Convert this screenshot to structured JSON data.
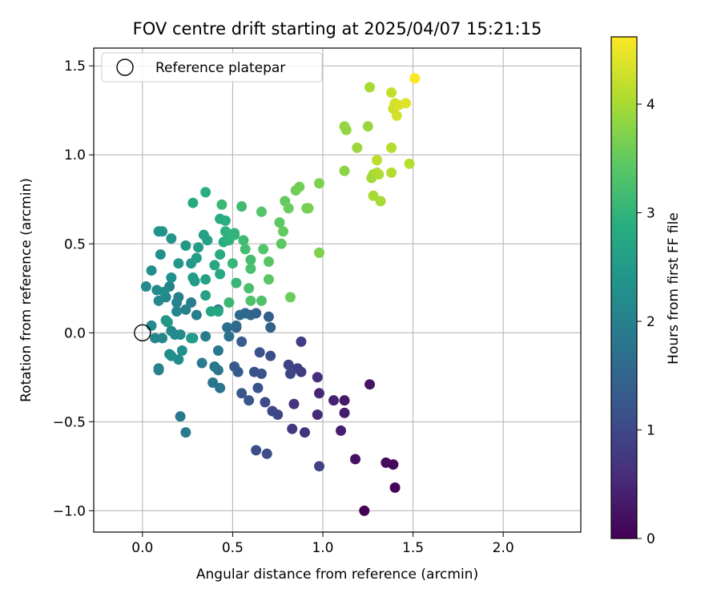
{
  "chart_data": {
    "type": "scatter",
    "title": "FOV centre drift starting at 2025/04/07 15:21:15",
    "xlabel": "Angular distance from reference (arcmin)",
    "ylabel": "Rotation from reference (arcmin)",
    "xlim": [
      -0.27,
      2.43
    ],
    "ylim": [
      -1.12,
      1.6
    ],
    "xticks": [
      0.0,
      0.5,
      1.0,
      1.5,
      2.0
    ],
    "xtick_labels": [
      "0.0",
      "0.5",
      "1.0",
      "1.5",
      "2.0"
    ],
    "yticks": [
      -1.0,
      -0.5,
      0.0,
      0.5,
      1.0,
      1.5
    ],
    "ytick_labels": [
      "−1.0",
      "−0.5",
      "0.0",
      "0.5",
      "1.0",
      "1.5"
    ],
    "grid": true,
    "legend": {
      "placement": "upper-left",
      "entries": [
        "Reference platepar"
      ]
    },
    "reference_point": {
      "x": 0.0,
      "y": 0.0
    },
    "colorbar": {
      "label": "Hours from first FF file",
      "range": [
        0,
        4.62
      ],
      "ticks": [
        0,
        1,
        2,
        3,
        4
      ],
      "tick_labels": [
        "0",
        "1",
        "2",
        "3",
        "4"
      ],
      "colormap": "viridis"
    },
    "points": [
      {
        "x": 1.23,
        "y": -1.0,
        "t": 0.0
      },
      {
        "x": 1.4,
        "y": -0.87,
        "t": 0.05
      },
      {
        "x": 1.39,
        "y": -0.74,
        "t": 0.1
      },
      {
        "x": 1.35,
        "y": -0.73,
        "t": 0.15
      },
      {
        "x": 1.18,
        "y": -0.71,
        "t": 0.2
      },
      {
        "x": 1.26,
        "y": -0.29,
        "t": 0.25
      },
      {
        "x": 1.12,
        "y": -0.38,
        "t": 0.3
      },
      {
        "x": 1.12,
        "y": -0.45,
        "t": 0.35
      },
      {
        "x": 1.1,
        "y": -0.55,
        "t": 0.4
      },
      {
        "x": 1.06,
        "y": -0.38,
        "t": 0.45
      },
      {
        "x": 0.98,
        "y": -0.34,
        "t": 0.5
      },
      {
        "x": 0.97,
        "y": -0.46,
        "t": 0.55
      },
      {
        "x": 0.97,
        "y": -0.25,
        "t": 0.6
      },
      {
        "x": 0.9,
        "y": -0.56,
        "t": 0.65
      },
      {
        "x": 0.84,
        "y": -0.4,
        "t": 0.7
      },
      {
        "x": 0.83,
        "y": -0.54,
        "t": 0.75
      },
      {
        "x": 0.88,
        "y": -0.22,
        "t": 0.8
      },
      {
        "x": 0.86,
        "y": -0.2,
        "t": 0.85
      },
      {
        "x": 0.81,
        "y": -0.18,
        "t": 0.9
      },
      {
        "x": 0.82,
        "y": -0.23,
        "t": 0.95
      },
      {
        "x": 0.75,
        "y": -0.46,
        "t": 1.0
      },
      {
        "x": 0.72,
        "y": -0.44,
        "t": 1.0
      },
      {
        "x": 0.68,
        "y": -0.39,
        "t": 1.05
      },
      {
        "x": 0.69,
        "y": -0.68,
        "t": 1.05
      },
      {
        "x": 0.63,
        "y": -0.66,
        "t": 1.1
      },
      {
        "x": 0.71,
        "y": -0.13,
        "t": 1.1
      },
      {
        "x": 0.65,
        "y": -0.11,
        "t": 1.15
      },
      {
        "x": 0.66,
        "y": -0.23,
        "t": 1.15
      },
      {
        "x": 0.62,
        "y": -0.22,
        "t": 1.2
      },
      {
        "x": 0.64,
        "y": -0.31,
        "t": 1.2
      },
      {
        "x": 0.59,
        "y": -0.38,
        "t": 1.25
      },
      {
        "x": 0.55,
        "y": -0.34,
        "t": 1.25
      },
      {
        "x": 0.51,
        "y": -0.19,
        "t": 1.3
      },
      {
        "x": 0.53,
        "y": -0.22,
        "t": 1.3
      },
      {
        "x": 0.55,
        "y": -0.05,
        "t": 1.35
      },
      {
        "x": 0.52,
        "y": 0.03,
        "t": 1.35
      },
      {
        "x": 0.88,
        "y": -0.05,
        "t": 0.85
      },
      {
        "x": 0.98,
        "y": -0.75,
        "t": 0.9
      },
      {
        "x": 0.7,
        "y": 0.09,
        "t": 1.4
      },
      {
        "x": 0.71,
        "y": 0.03,
        "t": 1.45
      },
      {
        "x": 0.63,
        "y": 0.11,
        "t": 1.45
      },
      {
        "x": 0.6,
        "y": 0.1,
        "t": 1.5
      },
      {
        "x": 0.57,
        "y": 0.11,
        "t": 1.55
      },
      {
        "x": 0.54,
        "y": 0.1,
        "t": 1.6
      },
      {
        "x": 0.52,
        "y": 0.04,
        "t": 1.6
      },
      {
        "x": 0.47,
        "y": 0.03,
        "t": 1.65
      },
      {
        "x": 0.48,
        "y": -0.02,
        "t": 1.7
      },
      {
        "x": 0.42,
        "y": 0.13,
        "t": 1.75
      },
      {
        "x": 0.43,
        "y": -0.31,
        "t": 1.75
      },
      {
        "x": 0.42,
        "y": -0.21,
        "t": 1.8
      },
      {
        "x": 0.39,
        "y": -0.28,
        "t": 1.8
      },
      {
        "x": 0.4,
        "y": -0.19,
        "t": 1.85
      },
      {
        "x": 0.42,
        "y": -0.1,
        "t": 1.85
      },
      {
        "x": 0.33,
        "y": -0.17,
        "t": 1.9
      },
      {
        "x": 0.35,
        "y": -0.02,
        "t": 1.9
      },
      {
        "x": 0.3,
        "y": 0.1,
        "t": 1.95
      },
      {
        "x": 0.27,
        "y": 0.17,
        "t": 1.95
      },
      {
        "x": 0.24,
        "y": 0.13,
        "t": 2.0
      },
      {
        "x": 0.21,
        "y": -0.47,
        "t": 1.85
      },
      {
        "x": 0.24,
        "y": -0.56,
        "t": 1.9
      },
      {
        "x": 0.2,
        "y": 0.2,
        "t": 2.0
      },
      {
        "x": 0.19,
        "y": 0.17,
        "t": 2.05
      },
      {
        "x": 0.15,
        "y": 0.26,
        "t": 2.05
      },
      {
        "x": 0.13,
        "y": 0.2,
        "t": 2.1
      },
      {
        "x": 0.19,
        "y": 0.12,
        "t": 2.1
      },
      {
        "x": 0.16,
        "y": 0.01,
        "t": 2.15
      },
      {
        "x": 0.18,
        "y": -0.01,
        "t": 2.15
      },
      {
        "x": 0.21,
        "y": -0.01,
        "t": 2.2
      },
      {
        "x": 0.16,
        "y": -0.13,
        "t": 2.2
      },
      {
        "x": 0.15,
        "y": -0.12,
        "t": 2.25
      },
      {
        "x": 0.2,
        "y": -0.15,
        "t": 2.25
      },
      {
        "x": 0.22,
        "y": -0.1,
        "t": 2.3
      },
      {
        "x": 0.09,
        "y": -0.21,
        "t": 2.0
      },
      {
        "x": 0.09,
        "y": -0.2,
        "t": 2.05
      },
      {
        "x": 0.07,
        "y": -0.03,
        "t": 2.1
      },
      {
        "x": 0.11,
        "y": -0.03,
        "t": 2.1
      },
      {
        "x": 0.05,
        "y": 0.04,
        "t": 2.15
      },
      {
        "x": 0.09,
        "y": 0.18,
        "t": 2.15
      },
      {
        "x": 0.08,
        "y": 0.24,
        "t": 2.2
      },
      {
        "x": 0.02,
        "y": 0.26,
        "t": 2.2
      },
      {
        "x": 0.05,
        "y": 0.35,
        "t": 2.25
      },
      {
        "x": 0.12,
        "y": 0.23,
        "t": 2.25
      },
      {
        "x": 0.16,
        "y": 0.31,
        "t": 2.3
      },
      {
        "x": 0.1,
        "y": 0.44,
        "t": 2.3
      },
      {
        "x": 0.09,
        "y": 0.57,
        "t": 2.35
      },
      {
        "x": 0.11,
        "y": 0.57,
        "t": 2.35
      },
      {
        "x": 0.16,
        "y": 0.53,
        "t": 2.4
      },
      {
        "x": 0.2,
        "y": 0.39,
        "t": 2.4
      },
      {
        "x": 0.24,
        "y": 0.49,
        "t": 2.45
      },
      {
        "x": 0.27,
        "y": 0.39,
        "t": 2.45
      },
      {
        "x": 0.29,
        "y": 0.29,
        "t": 2.5
      },
      {
        "x": 0.28,
        "y": 0.31,
        "t": 2.5
      },
      {
        "x": 0.3,
        "y": 0.42,
        "t": 2.55
      },
      {
        "x": 0.31,
        "y": 0.48,
        "t": 2.55
      },
      {
        "x": 0.34,
        "y": 0.55,
        "t": 2.6
      },
      {
        "x": 0.36,
        "y": 0.52,
        "t": 2.6
      },
      {
        "x": 0.35,
        "y": 0.3,
        "t": 2.65
      },
      {
        "x": 0.35,
        "y": 0.21,
        "t": 2.65
      },
      {
        "x": 0.13,
        "y": 0.07,
        "t": 2.4
      },
      {
        "x": 0.14,
        "y": 0.06,
        "t": 2.45
      },
      {
        "x": 0.28,
        "y": -0.03,
        "t": 2.4
      },
      {
        "x": 0.27,
        "y": -0.03,
        "t": 2.5
      },
      {
        "x": 0.38,
        "y": 0.12,
        "t": 2.7
      },
      {
        "x": 0.42,
        "y": 0.12,
        "t": 2.75
      },
      {
        "x": 0.4,
        "y": 0.38,
        "t": 2.75
      },
      {
        "x": 0.43,
        "y": 0.33,
        "t": 2.8
      },
      {
        "x": 0.43,
        "y": 0.44,
        "t": 2.8
      },
      {
        "x": 0.45,
        "y": 0.51,
        "t": 2.85
      },
      {
        "x": 0.43,
        "y": 0.64,
        "t": 2.85
      },
      {
        "x": 0.46,
        "y": 0.63,
        "t": 2.9
      },
      {
        "x": 0.47,
        "y": 0.56,
        "t": 2.9
      },
      {
        "x": 0.46,
        "y": 0.57,
        "t": 2.95
      },
      {
        "x": 0.48,
        "y": 0.52,
        "t": 2.95
      },
      {
        "x": 0.51,
        "y": 0.55,
        "t": 3.0
      },
      {
        "x": 0.51,
        "y": 0.56,
        "t": 3.0
      },
      {
        "x": 0.5,
        "y": 0.39,
        "t": 3.05
      },
      {
        "x": 0.52,
        "y": 0.28,
        "t": 3.05
      },
      {
        "x": 0.48,
        "y": 0.17,
        "t": 3.1
      },
      {
        "x": 0.44,
        "y": 0.72,
        "t": 3.1
      },
      {
        "x": 0.35,
        "y": 0.79,
        "t": 2.9
      },
      {
        "x": 0.28,
        "y": 0.73,
        "t": 2.8
      },
      {
        "x": 0.55,
        "y": 0.71,
        "t": 3.15
      },
      {
        "x": 0.56,
        "y": 0.52,
        "t": 3.15
      },
      {
        "x": 0.57,
        "y": 0.47,
        "t": 3.2
      },
      {
        "x": 0.6,
        "y": 0.41,
        "t": 3.2
      },
      {
        "x": 0.6,
        "y": 0.36,
        "t": 3.25
      },
      {
        "x": 0.59,
        "y": 0.25,
        "t": 3.25
      },
      {
        "x": 0.6,
        "y": 0.18,
        "t": 3.3
      },
      {
        "x": 0.66,
        "y": 0.18,
        "t": 3.3
      },
      {
        "x": 0.66,
        "y": 0.68,
        "t": 3.35
      },
      {
        "x": 0.67,
        "y": 0.47,
        "t": 3.35
      },
      {
        "x": 0.7,
        "y": 0.4,
        "t": 3.4
      },
      {
        "x": 0.7,
        "y": 0.3,
        "t": 3.4
      },
      {
        "x": 0.76,
        "y": 0.62,
        "t": 3.45
      },
      {
        "x": 0.77,
        "y": 0.5,
        "t": 3.45
      },
      {
        "x": 0.78,
        "y": 0.57,
        "t": 3.5
      },
      {
        "x": 0.79,
        "y": 0.74,
        "t": 3.5
      },
      {
        "x": 0.81,
        "y": 0.7,
        "t": 3.55
      },
      {
        "x": 0.82,
        "y": 0.2,
        "t": 3.55
      },
      {
        "x": 0.85,
        "y": 0.8,
        "t": 3.6
      },
      {
        "x": 0.87,
        "y": 0.82,
        "t": 3.6
      },
      {
        "x": 0.92,
        "y": 0.7,
        "t": 3.65
      },
      {
        "x": 0.91,
        "y": 0.7,
        "t": 3.65
      },
      {
        "x": 0.98,
        "y": 0.45,
        "t": 3.7
      },
      {
        "x": 0.98,
        "y": 0.84,
        "t": 3.7
      },
      {
        "x": 1.12,
        "y": 0.91,
        "t": 3.8
      },
      {
        "x": 1.12,
        "y": 1.16,
        "t": 3.85
      },
      {
        "x": 1.13,
        "y": 1.14,
        "t": 3.85
      },
      {
        "x": 1.19,
        "y": 1.04,
        "t": 3.9
      },
      {
        "x": 1.25,
        "y": 1.16,
        "t": 3.9
      },
      {
        "x": 1.27,
        "y": 0.87,
        "t": 3.95
      },
      {
        "x": 1.28,
        "y": 0.89,
        "t": 3.95
      },
      {
        "x": 1.28,
        "y": 0.77,
        "t": 4.0
      },
      {
        "x": 1.32,
        "y": 0.74,
        "t": 4.0
      },
      {
        "x": 1.31,
        "y": 0.89,
        "t": 4.05
      },
      {
        "x": 1.3,
        "y": 0.9,
        "t": 4.05
      },
      {
        "x": 1.38,
        "y": 0.9,
        "t": 4.1
      },
      {
        "x": 1.38,
        "y": 1.04,
        "t": 4.1
      },
      {
        "x": 1.3,
        "y": 0.97,
        "t": 4.15
      },
      {
        "x": 1.26,
        "y": 1.38,
        "t": 4.0
      },
      {
        "x": 1.38,
        "y": 1.35,
        "t": 4.2
      },
      {
        "x": 1.39,
        "y": 1.26,
        "t": 4.25
      },
      {
        "x": 1.4,
        "y": 1.29,
        "t": 4.3
      },
      {
        "x": 1.41,
        "y": 1.22,
        "t": 4.3
      },
      {
        "x": 1.42,
        "y": 1.28,
        "t": 4.35
      },
      {
        "x": 1.46,
        "y": 1.29,
        "t": 4.4
      },
      {
        "x": 1.48,
        "y": 0.95,
        "t": 4.1
      },
      {
        "x": 1.51,
        "y": 1.43,
        "t": 4.6
      }
    ]
  }
}
